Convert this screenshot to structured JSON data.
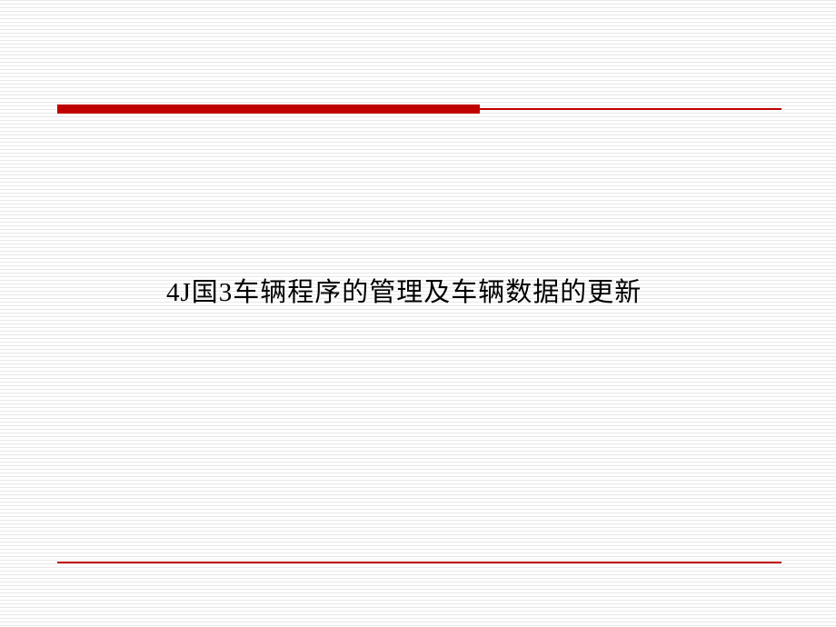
{
  "slide": {
    "title": "4J国3车辆程序的管理及车辆数据的更新",
    "accent_color": "#c00000",
    "background_color": "#ffffff",
    "line_pattern_color": "#e8e8e8",
    "title_fontsize": 29,
    "title_color": "#000000",
    "title_font_family": "SimSun",
    "top_divider": {
      "thick_segment_width": 465,
      "thick_segment_height": 10,
      "thin_segment_height": 2
    }
  }
}
